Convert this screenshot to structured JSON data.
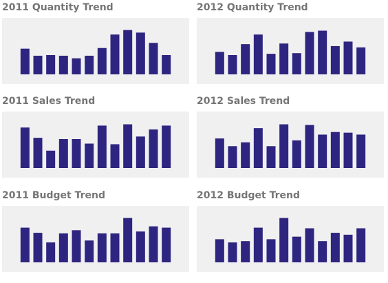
{
  "colors": {
    "bar": "#2e2580",
    "panel": "#f0f0f0",
    "title": "#757575"
  },
  "chart_data": [
    {
      "type": "bar",
      "title": "2011 Quantity Trend",
      "values": [
        40,
        29,
        30,
        29,
        25,
        29,
        41,
        62,
        69,
        65,
        49,
        30
      ],
      "ylim": [
        0,
        75
      ],
      "grid": false,
      "legend": "none"
    },
    {
      "type": "bar",
      "title": "2012 Quantity Trend",
      "values": [
        35,
        30,
        47,
        62,
        32,
        48,
        33,
        66,
        68,
        44,
        51,
        42
      ],
      "ylim": [
        0,
        75
      ],
      "grid": false,
      "legend": "none"
    },
    {
      "type": "bar",
      "title": "2011 Sales Trend",
      "values": [
        63,
        47,
        27,
        45,
        45,
        38,
        66,
        37,
        68,
        49,
        60,
        66
      ],
      "ylim": [
        0,
        75
      ],
      "grid": false,
      "legend": "none"
    },
    {
      "type": "bar",
      "title": "2012 Sales Trend",
      "values": [
        46,
        34,
        40,
        62,
        34,
        68,
        43,
        67,
        52,
        56,
        55,
        52
      ],
      "ylim": [
        0,
        75
      ],
      "grid": false,
      "legend": "none"
    },
    {
      "type": "bar",
      "title": "2011 Budget Trend",
      "values": [
        54,
        46,
        31,
        45,
        50,
        34,
        45,
        45,
        69,
        48,
        56,
        54
      ],
      "ylim": [
        0,
        75
      ],
      "grid": false,
      "legend": "none"
    },
    {
      "type": "bar",
      "title": "2012 Budget Trend",
      "values": [
        36,
        31,
        33,
        54,
        36,
        69,
        40,
        53,
        33,
        46,
        43,
        53
      ],
      "ylim": [
        0,
        75
      ],
      "grid": false,
      "legend": "none"
    }
  ]
}
